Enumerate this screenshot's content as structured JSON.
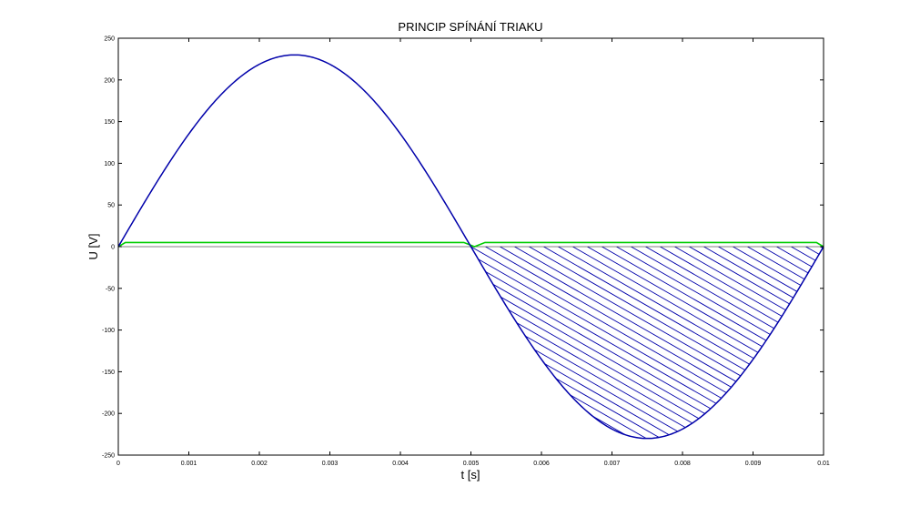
{
  "chart_data": {
    "type": "line",
    "title": "PRINCIP SPÍNÁNÍ TRIAKU",
    "xlabel": "t [s]",
    "ylabel": "U [V]",
    "xlim": [
      0,
      0.01
    ],
    "ylim": [
      -250,
      250
    ],
    "xticks": [
      0,
      0.001,
      0.002,
      0.003,
      0.004,
      0.005,
      0.006,
      0.007,
      0.008,
      0.009,
      0.01
    ],
    "xtick_labels": [
      "0",
      "0.001",
      "0.002",
      "0.003",
      "0.004",
      "0.005",
      "0.006",
      "0.007",
      "0.008",
      "0.009",
      "0.01"
    ],
    "yticks": [
      250,
      200,
      150,
      100,
      50,
      0,
      -50,
      -100,
      -150,
      -200,
      -250
    ],
    "ytick_labels": [
      "250",
      "200",
      "150",
      "100",
      "50",
      "0",
      "-50",
      "-100",
      "-150",
      "-200",
      "-250"
    ],
    "grid": false,
    "series": [
      {
        "kind": "sine",
        "amplitude": 230,
        "frequency_hz": 100,
        "x_range": [
          0,
          0.01
        ],
        "color": "#0000aa"
      },
      {
        "kind": "gate",
        "x": [
          0,
          0.0001,
          0.0049,
          0.00505,
          0.0052,
          0.0099,
          0.01
        ],
        "y": [
          0,
          5,
          5,
          0,
          5,
          5,
          0
        ],
        "color": "#00cc00"
      }
    ],
    "hatched_region": {
      "x_range": [
        0.005,
        0.01
      ],
      "between": "sine_and_zero",
      "color": "#0000aa"
    }
  }
}
